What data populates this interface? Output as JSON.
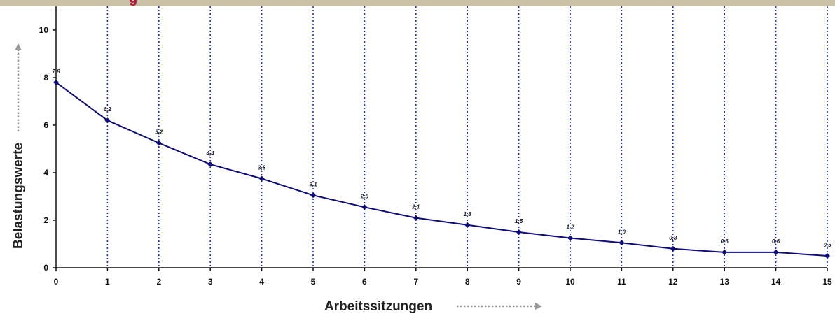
{
  "page": {
    "title_fragment": "g"
  },
  "chart_data": {
    "type": "line",
    "x": [
      0,
      1,
      2,
      3,
      4,
      5,
      6,
      7,
      8,
      9,
      10,
      11,
      12,
      13,
      14,
      15
    ],
    "values": [
      7.8,
      6.2,
      5.25,
      4.35,
      3.75,
      3.05,
      2.55,
      2.1,
      1.8,
      1.5,
      1.25,
      1.05,
      0.8,
      0.65,
      0.65,
      0.5
    ],
    "data_labels": [
      "7,8",
      "6,2",
      "5,2",
      "4,4",
      "3,8",
      "3,1",
      "2,5",
      "2,1",
      "1,8",
      "1,5",
      "1,2",
      "1,0",
      "0,8",
      "0,6",
      "0,6",
      "0,5"
    ],
    "xlabel": "Arbeitssitzungen",
    "ylabel": "Belastungswerte",
    "xlim": [
      0,
      15
    ],
    "ylim": [
      0,
      11
    ],
    "y_ticks": [
      0,
      2,
      4,
      6,
      8,
      10
    ],
    "x_ticks": [
      0,
      1,
      2,
      3,
      4,
      5,
      6,
      7,
      8,
      9,
      10,
      11,
      12,
      13,
      14,
      15
    ],
    "grid": "vertical dotted",
    "line_color": "#0c0c7a",
    "grid_color": "#1b2fd6",
    "arrow_color": "#9a9a9a",
    "title_color": "#b3123d",
    "band_color": "#c9c1a6"
  }
}
